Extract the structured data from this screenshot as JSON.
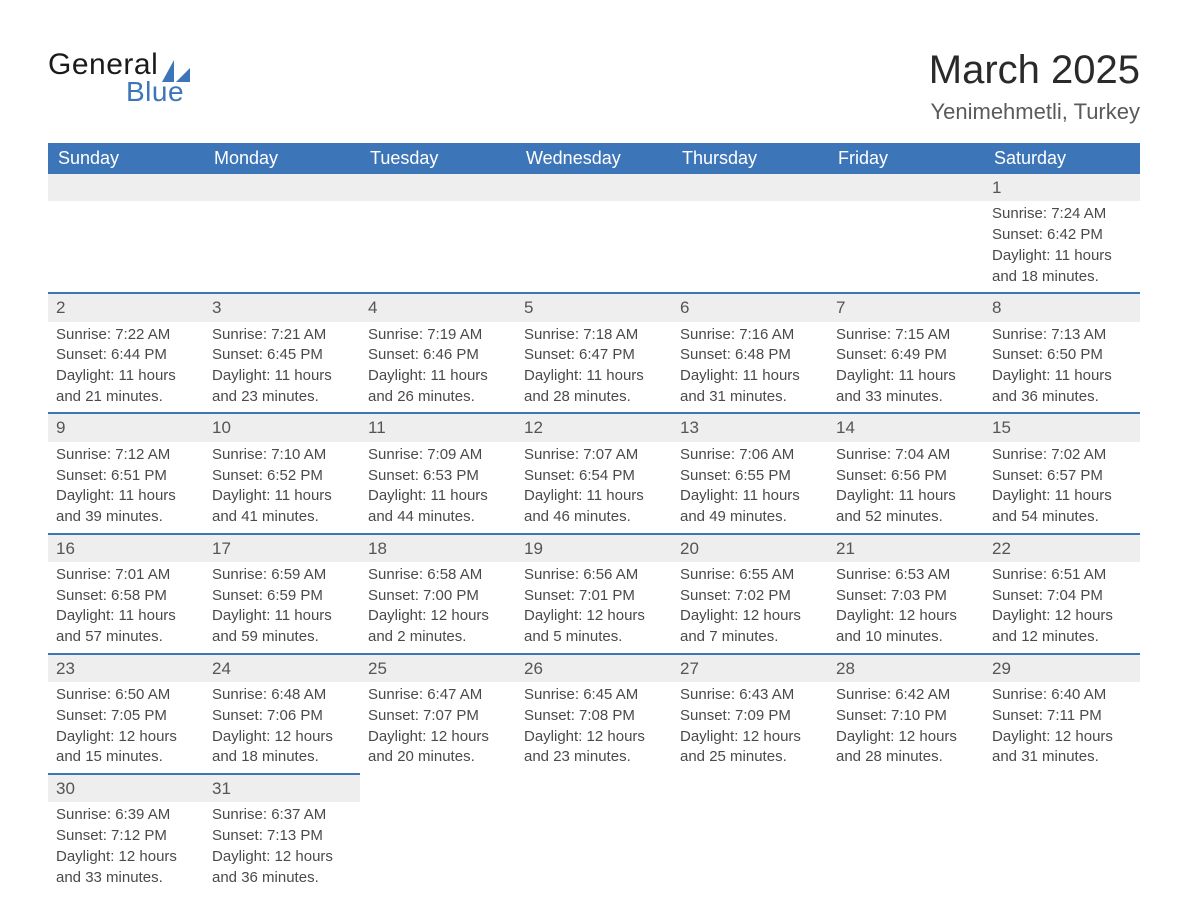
{
  "brand": {
    "general": "General",
    "blue": "Blue",
    "sail_color": "#3d76b8"
  },
  "header": {
    "month_title": "March 2025",
    "location": "Yenimehmetli, Turkey"
  },
  "styling": {
    "header_bg": "#3d76b8",
    "header_text": "#ffffff",
    "row_divider": "#3d76b8",
    "daynum_bg": "#eeeeee",
    "body_bg": "#ffffff",
    "text_color": "#4a4a4a",
    "title_fontsize": 40,
    "location_fontsize": 22,
    "dayhead_fontsize": 18,
    "cell_fontsize": 15
  },
  "calendar": {
    "day_headers": [
      "Sunday",
      "Monday",
      "Tuesday",
      "Wednesday",
      "Thursday",
      "Friday",
      "Saturday"
    ],
    "weeks": [
      [
        null,
        null,
        null,
        null,
        null,
        null,
        {
          "n": "1",
          "sr": "Sunrise: 7:24 AM",
          "ss": "Sunset: 6:42 PM",
          "dl1": "Daylight: 11 hours",
          "dl2": "and 18 minutes."
        }
      ],
      [
        {
          "n": "2",
          "sr": "Sunrise: 7:22 AM",
          "ss": "Sunset: 6:44 PM",
          "dl1": "Daylight: 11 hours",
          "dl2": "and 21 minutes."
        },
        {
          "n": "3",
          "sr": "Sunrise: 7:21 AM",
          "ss": "Sunset: 6:45 PM",
          "dl1": "Daylight: 11 hours",
          "dl2": "and 23 minutes."
        },
        {
          "n": "4",
          "sr": "Sunrise: 7:19 AM",
          "ss": "Sunset: 6:46 PM",
          "dl1": "Daylight: 11 hours",
          "dl2": "and 26 minutes."
        },
        {
          "n": "5",
          "sr": "Sunrise: 7:18 AM",
          "ss": "Sunset: 6:47 PM",
          "dl1": "Daylight: 11 hours",
          "dl2": "and 28 minutes."
        },
        {
          "n": "6",
          "sr": "Sunrise: 7:16 AM",
          "ss": "Sunset: 6:48 PM",
          "dl1": "Daylight: 11 hours",
          "dl2": "and 31 minutes."
        },
        {
          "n": "7",
          "sr": "Sunrise: 7:15 AM",
          "ss": "Sunset: 6:49 PM",
          "dl1": "Daylight: 11 hours",
          "dl2": "and 33 minutes."
        },
        {
          "n": "8",
          "sr": "Sunrise: 7:13 AM",
          "ss": "Sunset: 6:50 PM",
          "dl1": "Daylight: 11 hours",
          "dl2": "and 36 minutes."
        }
      ],
      [
        {
          "n": "9",
          "sr": "Sunrise: 7:12 AM",
          "ss": "Sunset: 6:51 PM",
          "dl1": "Daylight: 11 hours",
          "dl2": "and 39 minutes."
        },
        {
          "n": "10",
          "sr": "Sunrise: 7:10 AM",
          "ss": "Sunset: 6:52 PM",
          "dl1": "Daylight: 11 hours",
          "dl2": "and 41 minutes."
        },
        {
          "n": "11",
          "sr": "Sunrise: 7:09 AM",
          "ss": "Sunset: 6:53 PM",
          "dl1": "Daylight: 11 hours",
          "dl2": "and 44 minutes."
        },
        {
          "n": "12",
          "sr": "Sunrise: 7:07 AM",
          "ss": "Sunset: 6:54 PM",
          "dl1": "Daylight: 11 hours",
          "dl2": "and 46 minutes."
        },
        {
          "n": "13",
          "sr": "Sunrise: 7:06 AM",
          "ss": "Sunset: 6:55 PM",
          "dl1": "Daylight: 11 hours",
          "dl2": "and 49 minutes."
        },
        {
          "n": "14",
          "sr": "Sunrise: 7:04 AM",
          "ss": "Sunset: 6:56 PM",
          "dl1": "Daylight: 11 hours",
          "dl2": "and 52 minutes."
        },
        {
          "n": "15",
          "sr": "Sunrise: 7:02 AM",
          "ss": "Sunset: 6:57 PM",
          "dl1": "Daylight: 11 hours",
          "dl2": "and 54 minutes."
        }
      ],
      [
        {
          "n": "16",
          "sr": "Sunrise: 7:01 AM",
          "ss": "Sunset: 6:58 PM",
          "dl1": "Daylight: 11 hours",
          "dl2": "and 57 minutes."
        },
        {
          "n": "17",
          "sr": "Sunrise: 6:59 AM",
          "ss": "Sunset: 6:59 PM",
          "dl1": "Daylight: 11 hours",
          "dl2": "and 59 minutes."
        },
        {
          "n": "18",
          "sr": "Sunrise: 6:58 AM",
          "ss": "Sunset: 7:00 PM",
          "dl1": "Daylight: 12 hours",
          "dl2": "and 2 minutes."
        },
        {
          "n": "19",
          "sr": "Sunrise: 6:56 AM",
          "ss": "Sunset: 7:01 PM",
          "dl1": "Daylight: 12 hours",
          "dl2": "and 5 minutes."
        },
        {
          "n": "20",
          "sr": "Sunrise: 6:55 AM",
          "ss": "Sunset: 7:02 PM",
          "dl1": "Daylight: 12 hours",
          "dl2": "and 7 minutes."
        },
        {
          "n": "21",
          "sr": "Sunrise: 6:53 AM",
          "ss": "Sunset: 7:03 PM",
          "dl1": "Daylight: 12 hours",
          "dl2": "and 10 minutes."
        },
        {
          "n": "22",
          "sr": "Sunrise: 6:51 AM",
          "ss": "Sunset: 7:04 PM",
          "dl1": "Daylight: 12 hours",
          "dl2": "and 12 minutes."
        }
      ],
      [
        {
          "n": "23",
          "sr": "Sunrise: 6:50 AM",
          "ss": "Sunset: 7:05 PM",
          "dl1": "Daylight: 12 hours",
          "dl2": "and 15 minutes."
        },
        {
          "n": "24",
          "sr": "Sunrise: 6:48 AM",
          "ss": "Sunset: 7:06 PM",
          "dl1": "Daylight: 12 hours",
          "dl2": "and 18 minutes."
        },
        {
          "n": "25",
          "sr": "Sunrise: 6:47 AM",
          "ss": "Sunset: 7:07 PM",
          "dl1": "Daylight: 12 hours",
          "dl2": "and 20 minutes."
        },
        {
          "n": "26",
          "sr": "Sunrise: 6:45 AM",
          "ss": "Sunset: 7:08 PM",
          "dl1": "Daylight: 12 hours",
          "dl2": "and 23 minutes."
        },
        {
          "n": "27",
          "sr": "Sunrise: 6:43 AM",
          "ss": "Sunset: 7:09 PM",
          "dl1": "Daylight: 12 hours",
          "dl2": "and 25 minutes."
        },
        {
          "n": "28",
          "sr": "Sunrise: 6:42 AM",
          "ss": "Sunset: 7:10 PM",
          "dl1": "Daylight: 12 hours",
          "dl2": "and 28 minutes."
        },
        {
          "n": "29",
          "sr": "Sunrise: 6:40 AM",
          "ss": "Sunset: 7:11 PM",
          "dl1": "Daylight: 12 hours",
          "dl2": "and 31 minutes."
        }
      ],
      [
        {
          "n": "30",
          "sr": "Sunrise: 6:39 AM",
          "ss": "Sunset: 7:12 PM",
          "dl1": "Daylight: 12 hours",
          "dl2": "and 33 minutes."
        },
        {
          "n": "31",
          "sr": "Sunrise: 6:37 AM",
          "ss": "Sunset: 7:13 PM",
          "dl1": "Daylight: 12 hours",
          "dl2": "and 36 minutes."
        },
        null,
        null,
        null,
        null,
        null
      ]
    ]
  }
}
